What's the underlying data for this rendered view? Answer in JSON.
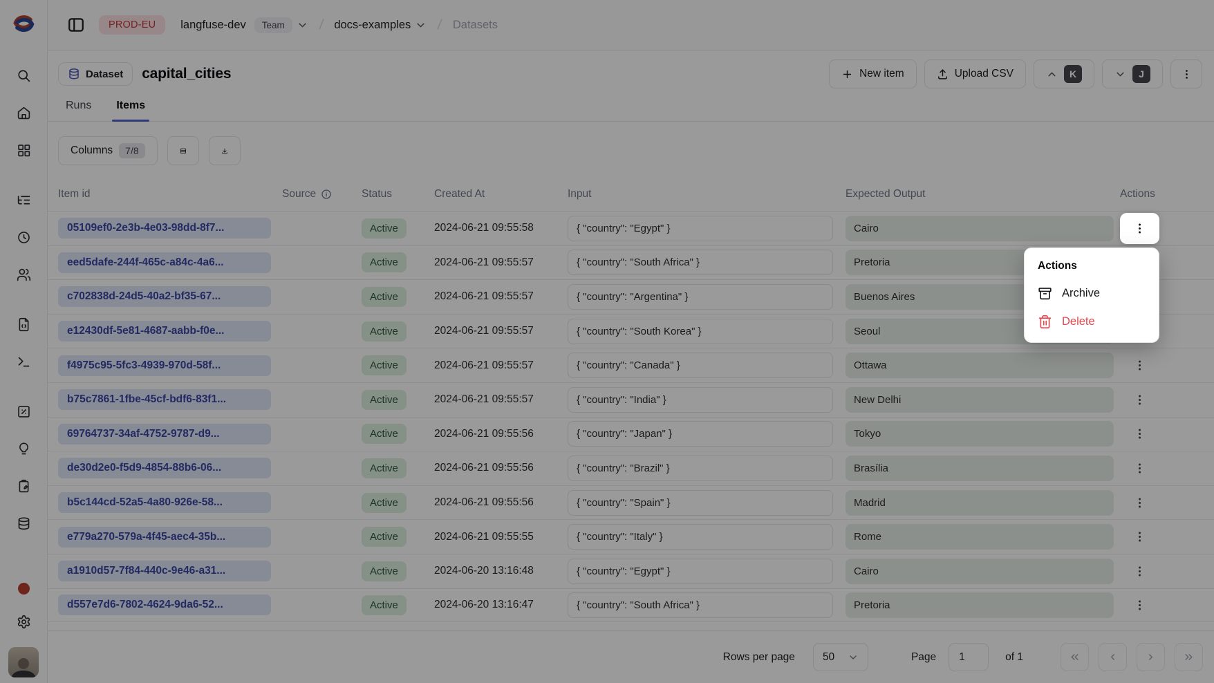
{
  "topbar": {
    "env_badge": "PROD-EU",
    "org_name": "langfuse-dev",
    "org_type_badge": "Team",
    "project_name": "docs-examples",
    "section": "Datasets"
  },
  "header": {
    "entity_badge": "Dataset",
    "title": "capital_cities",
    "new_item_label": "New item",
    "upload_csv_label": "Upload CSV",
    "shortcut_prev_key": "K",
    "shortcut_next_key": "J"
  },
  "tabs": [
    {
      "label": "Runs",
      "active": false
    },
    {
      "label": "Items",
      "active": true
    }
  ],
  "toolbar": {
    "columns_label": "Columns",
    "columns_count": "7/8"
  },
  "table": {
    "columns": [
      "Item id",
      "Source",
      "Status",
      "Created At",
      "Input",
      "Expected Output",
      "Actions"
    ],
    "rows": [
      {
        "id": "05109ef0-2e3b-4e03-98dd-8f7...",
        "source": "",
        "status": "Active",
        "created_at": "2024-06-21 09:55:58",
        "input": "{ \"country\": \"Egypt\" }",
        "expected_output": "Cairo"
      },
      {
        "id": "eed5dafe-244f-465c-a84c-4a6...",
        "source": "",
        "status": "Active",
        "created_at": "2024-06-21 09:55:57",
        "input": "{ \"country\": \"South Africa\" }",
        "expected_output": "Pretoria"
      },
      {
        "id": "c702838d-24d5-40a2-bf35-67...",
        "source": "",
        "status": "Active",
        "created_at": "2024-06-21 09:55:57",
        "input": "{ \"country\": \"Argentina\" }",
        "expected_output": "Buenos Aires"
      },
      {
        "id": "e12430df-5e81-4687-aabb-f0e...",
        "source": "",
        "status": "Active",
        "created_at": "2024-06-21 09:55:57",
        "input": "{ \"country\": \"South Korea\" }",
        "expected_output": "Seoul"
      },
      {
        "id": "f4975c95-5fc3-4939-970d-58f...",
        "source": "",
        "status": "Active",
        "created_at": "2024-06-21 09:55:57",
        "input": "{ \"country\": \"Canada\" }",
        "expected_output": "Ottawa"
      },
      {
        "id": "b75c7861-1fbe-45cf-bdf6-83f1...",
        "source": "",
        "status": "Active",
        "created_at": "2024-06-21 09:55:57",
        "input": "{ \"country\": \"India\" }",
        "expected_output": "New Delhi"
      },
      {
        "id": "69764737-34af-4752-9787-d9...",
        "source": "",
        "status": "Active",
        "created_at": "2024-06-21 09:55:56",
        "input": "{ \"country\": \"Japan\" }",
        "expected_output": "Tokyo"
      },
      {
        "id": "de30d2e0-f5d9-4854-88b6-06...",
        "source": "",
        "status": "Active",
        "created_at": "2024-06-21 09:55:56",
        "input": "{ \"country\": \"Brazil\" }",
        "expected_output": "Brasília"
      },
      {
        "id": "b5c144cd-52a5-4a80-926e-58...",
        "source": "",
        "status": "Active",
        "created_at": "2024-06-21 09:55:56",
        "input": "{ \"country\": \"Spain\" }",
        "expected_output": "Madrid"
      },
      {
        "id": "e779a270-579a-4f45-aec4-35b...",
        "source": "",
        "status": "Active",
        "created_at": "2024-06-21 09:55:55",
        "input": "{ \"country\": \"Italy\" }",
        "expected_output": "Rome"
      },
      {
        "id": "a1910d57-7f84-440c-9e46-a31...",
        "source": "",
        "status": "Active",
        "created_at": "2024-06-20 13:16:48",
        "input": "{ \"country\": \"Egypt\" }",
        "expected_output": "Cairo"
      },
      {
        "id": "d557e7d6-7802-4624-9da6-52...",
        "source": "",
        "status": "Active",
        "created_at": "2024-06-20 13:16:47",
        "input": "{ \"country\": \"South Africa\" }",
        "expected_output": "Pretoria"
      }
    ],
    "open_menu_row_index": 0
  },
  "context_menu": {
    "title": "Actions",
    "items": [
      {
        "label": "Archive",
        "icon": "archive-icon",
        "danger": false
      },
      {
        "label": "Delete",
        "icon": "trash-icon",
        "danger": true
      }
    ]
  },
  "footer": {
    "rows_per_page_label": "Rows per page",
    "rows_per_page_value": "50",
    "page_label": "Page",
    "page_value": "1",
    "page_total": "of 1"
  },
  "colors": {
    "accent_tab_underline": "#4b5cc4",
    "id_pill_bg": "#dfe5f7",
    "id_pill_text": "#36429e",
    "status_active_bg": "#dcefdd",
    "status_active_text": "#2a5234",
    "env_badge_bg": "#fbdfdf",
    "env_badge_text": "#bb3333",
    "danger": "#e5484d",
    "expected_cell_bg": "#e7efe7"
  }
}
